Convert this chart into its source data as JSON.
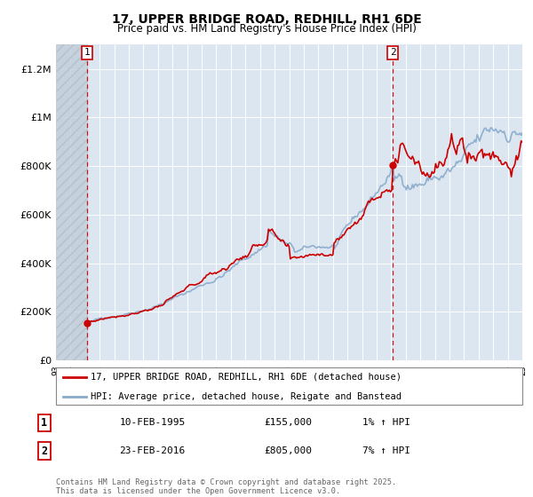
{
  "title": "17, UPPER BRIDGE ROAD, REDHILL, RH1 6DE",
  "subtitle": "Price paid vs. HM Land Registry's House Price Index (HPI)",
  "ytick_vals": [
    0,
    200000,
    400000,
    600000,
    800000,
    1000000,
    1200000
  ],
  "ylim": [
    0,
    1300000
  ],
  "xlim_year": [
    1993,
    2025
  ],
  "point1": {
    "year": 1995.12,
    "price": 155000,
    "label": "1",
    "date": "10-FEB-1995",
    "hpi_pct": "1%"
  },
  "point2": {
    "year": 2016.12,
    "price": 805000,
    "label": "2",
    "date": "23-FEB-2016",
    "hpi_pct": "7%"
  },
  "line_color_price": "#cc0000",
  "line_color_hpi": "#88aacc",
  "background_color": "#dce6f0",
  "hatch_color": "#c0ccd8",
  "grid_color": "#ffffff",
  "legend1": "17, UPPER BRIDGE ROAD, REDHILL, RH1 6DE (detached house)",
  "legend2": "HPI: Average price, detached house, Reigate and Banstead",
  "footer": "Contains HM Land Registry data © Crown copyright and database right 2025.\nThis data is licensed under the Open Government Licence v3.0."
}
